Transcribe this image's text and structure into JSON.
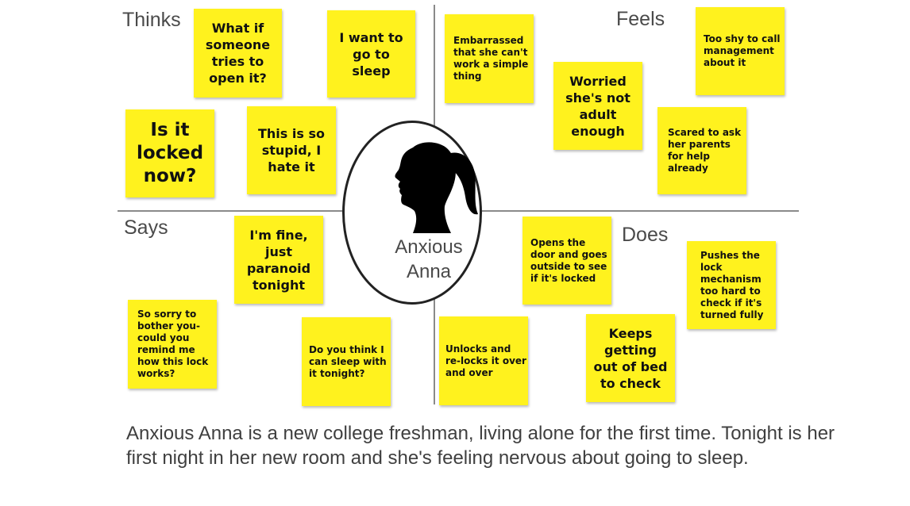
{
  "quadrants": {
    "thinks": "Thinks",
    "feels": "Feels",
    "says": "Says",
    "does": "Does"
  },
  "persona": {
    "name": "Anxious\nAnna",
    "icon": "woman-silhouette-icon"
  },
  "notes": {
    "thinks_1": "What if\nsomeone\ntries to\nopen it?",
    "thinks_2": "I want to\ngo to\nsleep",
    "thinks_3": "Is it\nlocked\nnow?",
    "thinks_4": "This is so\nstupid, I\nhate it",
    "feels_1": "Embarrassed\nthat she can't\nwork a simple\nthing",
    "feels_2": "Worried\nshe's not\nadult\nenough",
    "feels_3": "Too shy to call\nmanagement\nabout it",
    "feels_4": "Scared to ask\nher parents\nfor help\nalready",
    "says_1": "I'm fine,\njust\nparanoid\ntonight",
    "says_2": "So sorry to\nbother you-\ncould you\nremind me\nhow this lock\nworks?",
    "says_3": "Do you think I\ncan sleep with\nit tonight?",
    "does_1": "Opens the\ndoor and goes\noutside to see\nif it's locked",
    "does_2": "Pushes the\nlock\nmechanism\ntoo hard to\ncheck if it's\nturned fully",
    "does_3": "Unlocks and\nre-locks it over\nand over",
    "does_4": "Keeps\ngetting\nout of bed\nto check"
  },
  "description": "Anxious Anna is a new college freshman, living alone for the first time. Tonight is her first night in her new room and she's feeling nervous about going to sleep.",
  "colors": {
    "sticky_note": "#fff21e",
    "divider": "#8a8a8a",
    "label_text": "#4a4a4a"
  }
}
